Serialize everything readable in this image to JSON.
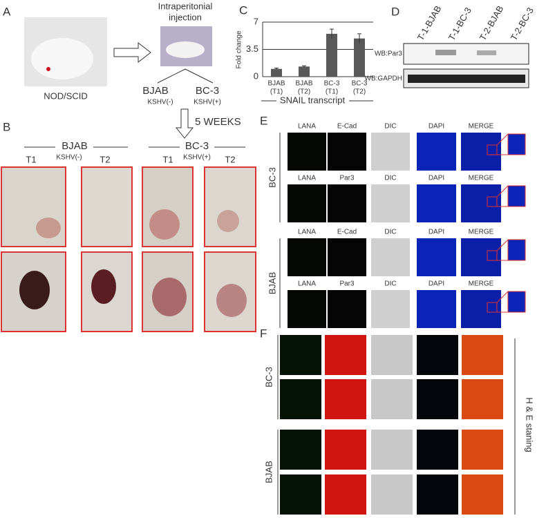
{
  "panel_a": {
    "label": "A",
    "mouse": "NOD/SCID",
    "injection": [
      "Intraperitonial",
      "injection"
    ],
    "left": {
      "name": "BJAB",
      "status": "KSHV(-)"
    },
    "right": {
      "name": "BC-3",
      "status": "KSHV(+)"
    },
    "duration": "5 WEEKS"
  },
  "panel_b": {
    "label": "B",
    "groups": [
      {
        "name": "BJAB",
        "status": "KSHV(-)",
        "tumors": [
          "T1",
          "T2"
        ]
      },
      {
        "name": "BC-3",
        "status": "KSHV(+)",
        "tumors": [
          "T1",
          "T2"
        ]
      }
    ]
  },
  "chart_data": {
    "type": "bar",
    "label": "C",
    "ylabel": "Fold change",
    "xlabel": "SNAIL transcript",
    "categories": [
      [
        "BJAB",
        "(T1)"
      ],
      [
        "BJAB",
        "(T2)"
      ],
      [
        "BC-3",
        "(T1)"
      ],
      [
        "BC-3",
        "(T2)"
      ]
    ],
    "values": [
      1.0,
      1.3,
      5.5,
      4.9
    ],
    "errors": [
      0.1,
      0.1,
      0.6,
      0.6
    ],
    "color": "#595959",
    "ylim": [
      0,
      7
    ],
    "yticks": [
      0,
      3.5,
      7
    ],
    "grid": true
  },
  "panel_d": {
    "label": "D",
    "lanes": [
      "T-1-BJAB",
      "T-1-BC-3",
      "T-2-BJAB",
      "T-2-BC-3"
    ],
    "blots": [
      "WB:Par3",
      "WB:GAPDH"
    ]
  },
  "panel_e": {
    "label": "E",
    "groups": [
      {
        "name": "BC-3",
        "rows": [
          [
            "LANA",
            "E-Cad",
            "DIC",
            "DAPI",
            "MERGE"
          ],
          [
            "LANA",
            "Par3",
            "DIC",
            "DAPI",
            "MERGE"
          ]
        ]
      },
      {
        "name": "BJAB",
        "rows": [
          [
            "LANA",
            "E-Cad",
            "DIC",
            "DAPI",
            "MERGE"
          ],
          [
            "LANA",
            "Par3",
            "DIC",
            "DAPI",
            "MERGE"
          ]
        ]
      }
    ]
  },
  "panel_f": {
    "label": "F",
    "groups": [
      "BC-3",
      "BJAB"
    ],
    "side_label": "H & E staning"
  }
}
